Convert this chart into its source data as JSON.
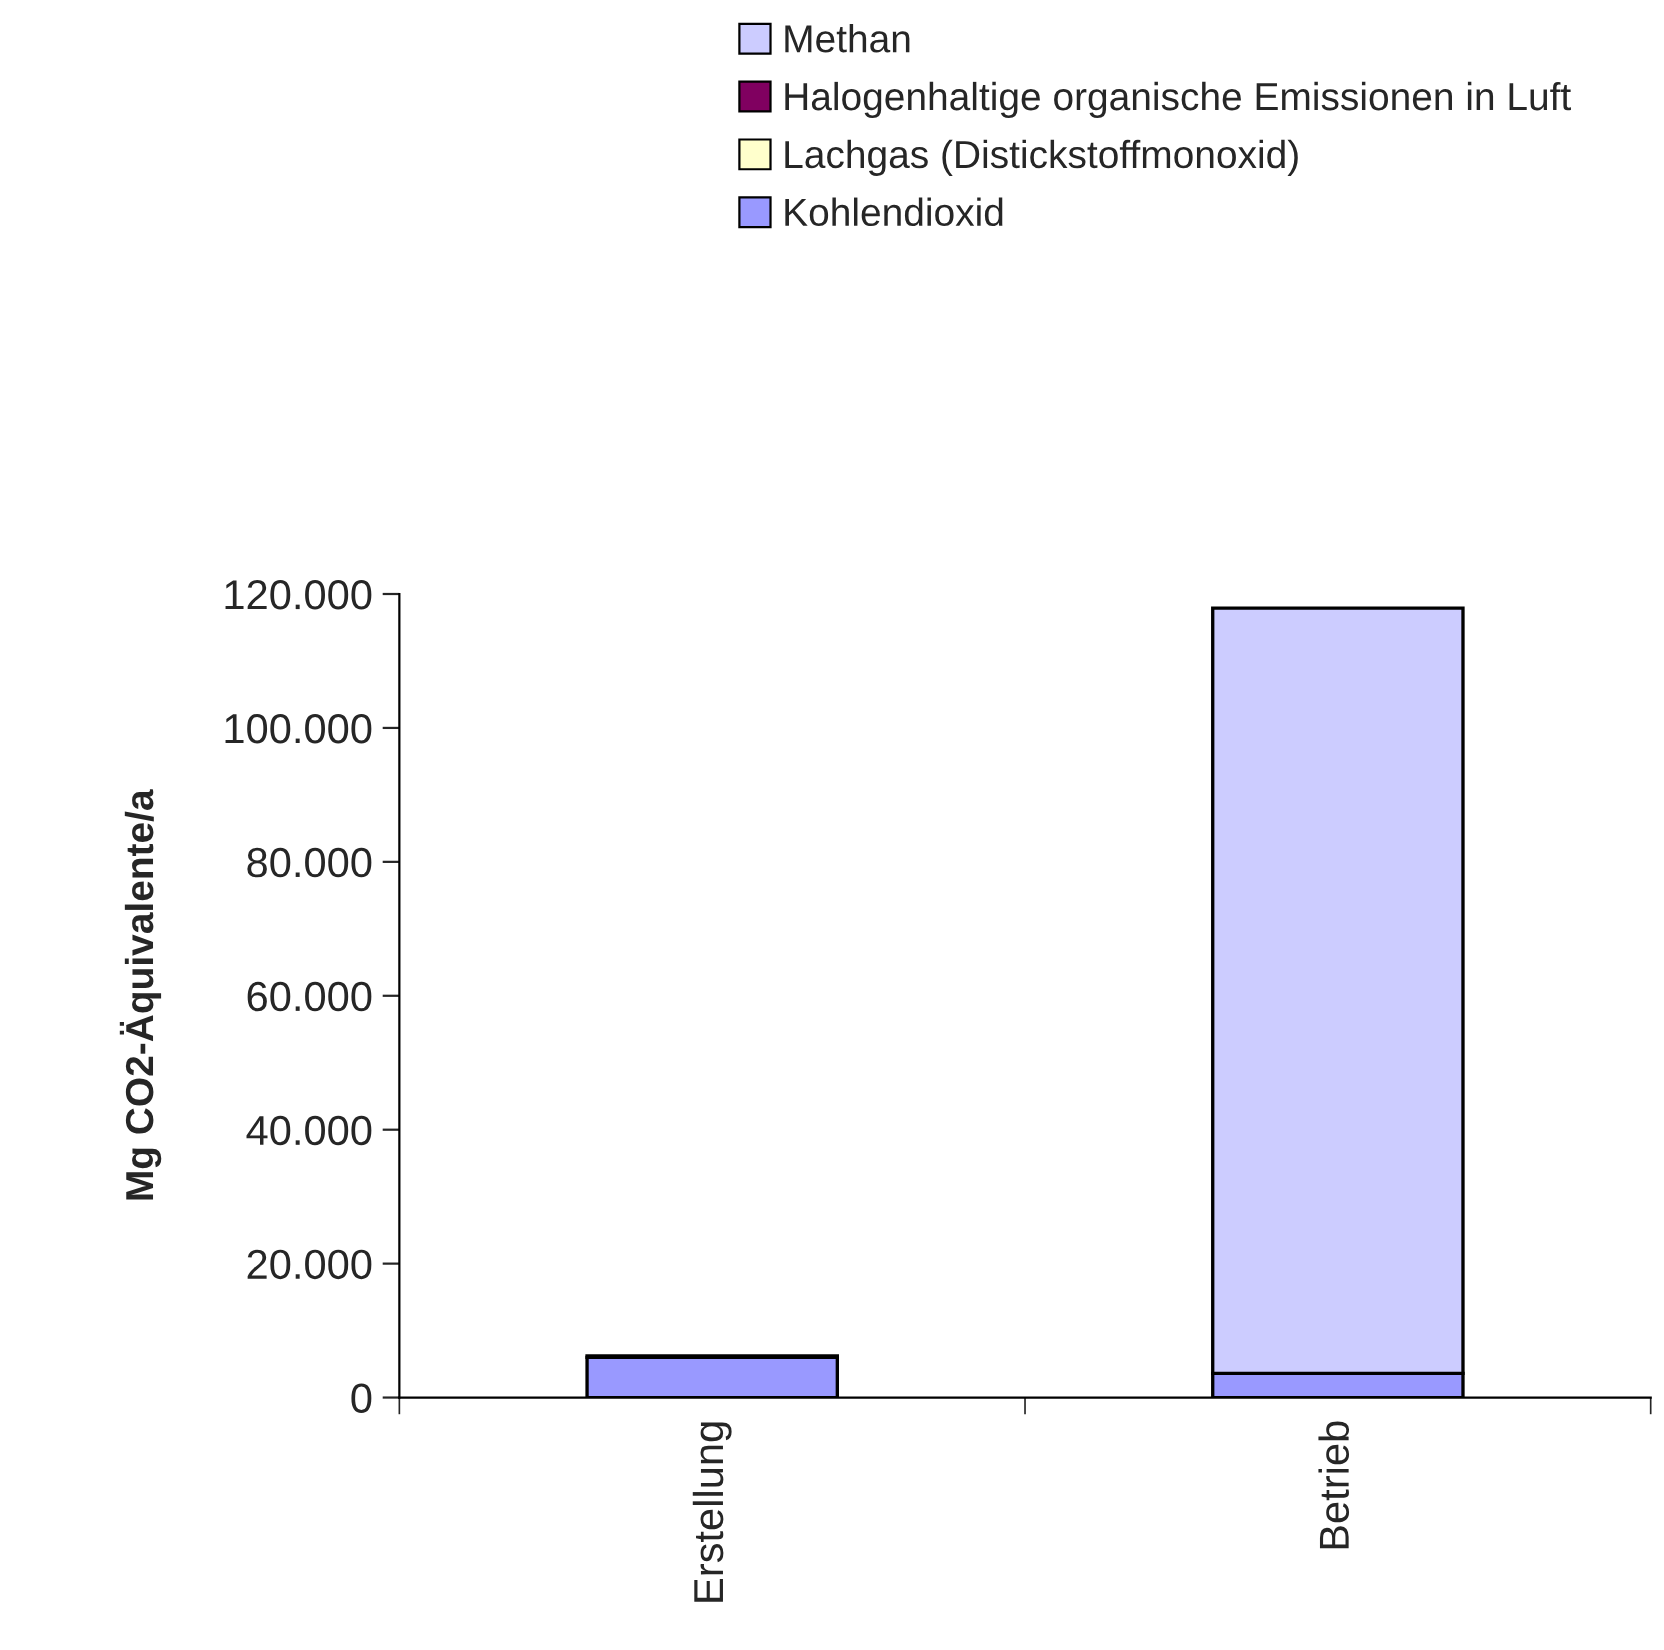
{
  "chart_data": {
    "type": "bar",
    "stacked": true,
    "ylabel": "Mg CO2-Äquivalente/a",
    "categories": [
      "Erstellung",
      "Betrieb"
    ],
    "series": [
      {
        "name": "Kohlendioxid",
        "color": "#9999ff",
        "values": [
          6000,
          3600
        ]
      },
      {
        "name": "Lachgas (Distickstoffmonoxid)",
        "color": "#ffffcc",
        "values": [
          0,
          0
        ]
      },
      {
        "name": "Halogenhaltige organische Emissionen in Luft",
        "color": "#800060",
        "values": [
          0,
          0
        ]
      },
      {
        "name": "Methan",
        "color": "#ccccff",
        "values": [
          200,
          114300
        ]
      }
    ],
    "ylim": [
      0,
      120000
    ],
    "yticks": [
      0,
      {
        "value": 20000,
        "label": "20.000"
      },
      {
        "value": 40000,
        "label": "40.000"
      },
      {
        "value": 60000,
        "label": "60.000"
      },
      {
        "value": 80000,
        "label": "80.000"
      },
      {
        "value": 100000,
        "label": "100.000"
      },
      {
        "value": 120000,
        "label": "120.000"
      }
    ],
    "legend": "top",
    "grid": false
  }
}
